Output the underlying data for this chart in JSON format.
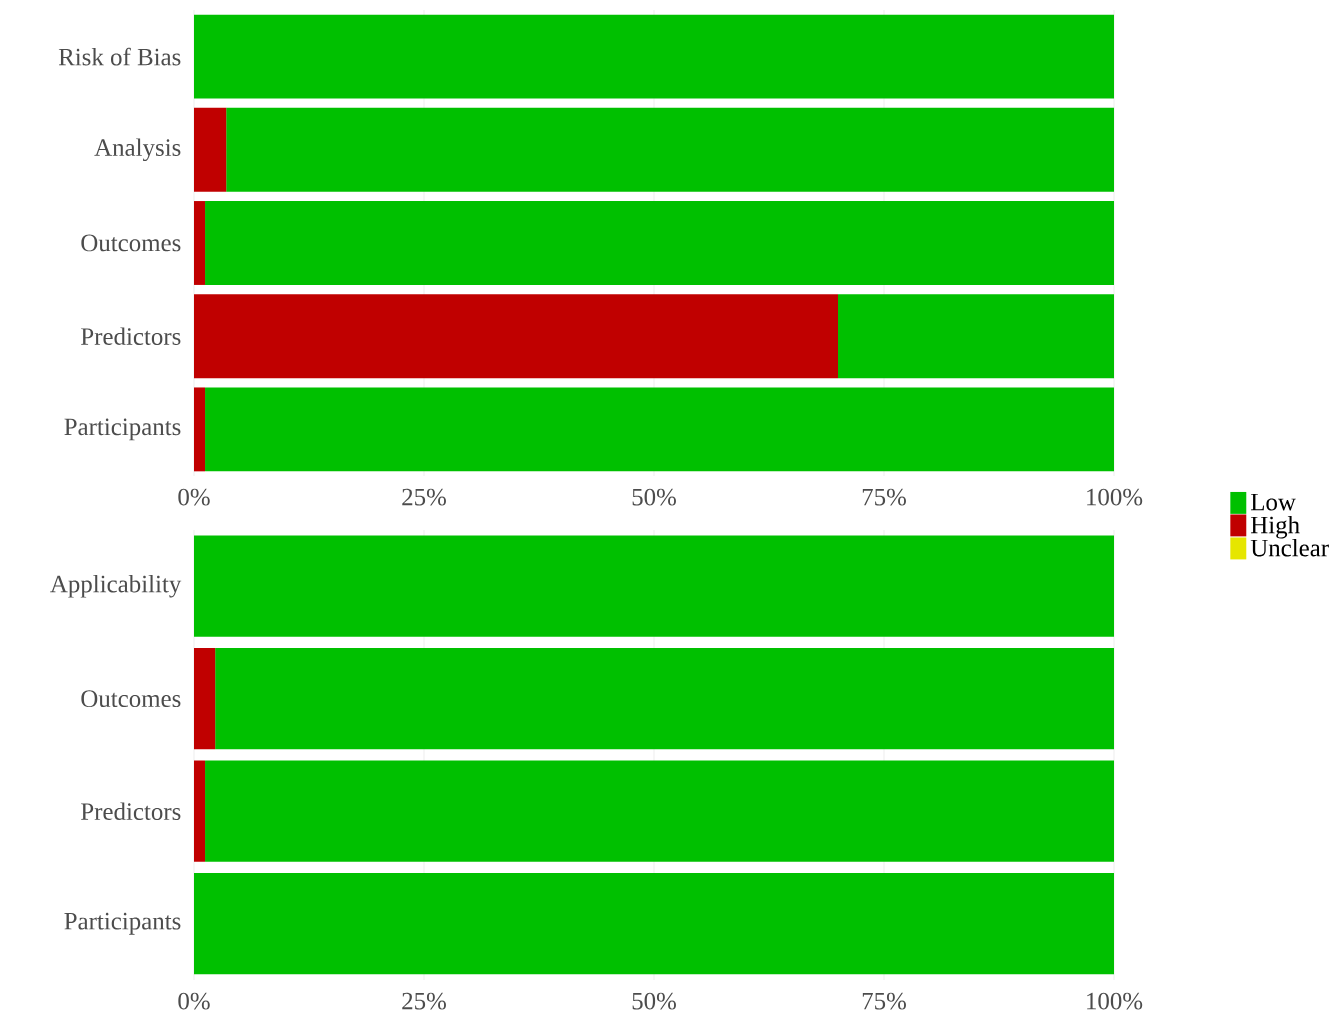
{
  "chart_data": [
    {
      "type": "bar",
      "orientation": "horizontal",
      "stacked": true,
      "categories": [
        "Risk of Bias",
        "Analysis",
        "Outcomes",
        "Predictors",
        "Participants"
      ],
      "series": [
        {
          "color": "#c00000",
          "values": [
            0,
            3.5,
            1.2,
            70,
            1.2
          ]
        },
        {
          "color": "#00c000",
          "values": [
            100,
            96.5,
            98.8,
            30,
            98.8
          ]
        },
        {
          "color": "#e6e600",
          "values": [
            0,
            0,
            0,
            0,
            0
          ]
        }
      ],
      "xlim": [
        0,
        100
      ],
      "xticks": [
        {
          "value": 0,
          "label": "0%"
        },
        {
          "value": 25,
          "label": "25%"
        },
        {
          "value": 50,
          "label": "50%"
        },
        {
          "value": 75,
          "label": "75%"
        },
        {
          "value": 100,
          "label": "100%"
        }
      ],
      "grid": true
    },
    {
      "type": "bar",
      "orientation": "horizontal",
      "stacked": true,
      "categories": [
        "Applicability",
        "Outcomes",
        "Predictors",
        "Participants"
      ],
      "series": [
        {
          "name": "High",
          "color": "#c00000",
          "values": [
            0,
            2.3,
            1.2,
            0
          ]
        },
        {
          "name": "Low",
          "color": "#00c000",
          "values": [
            100,
            97.7,
            98.8,
            100
          ]
        },
        {
          "name": "Unclear",
          "color": "#e6e600",
          "values": [
            0,
            0,
            0,
            0
          ]
        }
      ],
      "xlim": [
        0,
        100
      ],
      "xticks": [
        {
          "value": 0,
          "label": "0%"
        },
        {
          "value": 25,
          "label": "25%"
        },
        {
          "value": 50,
          "label": "50%"
        },
        {
          "value": 75,
          "label": "75%"
        },
        {
          "value": 100,
          "label": "100%"
        }
      ],
      "grid": true,
      "legend": "right"
    }
  ]
}
